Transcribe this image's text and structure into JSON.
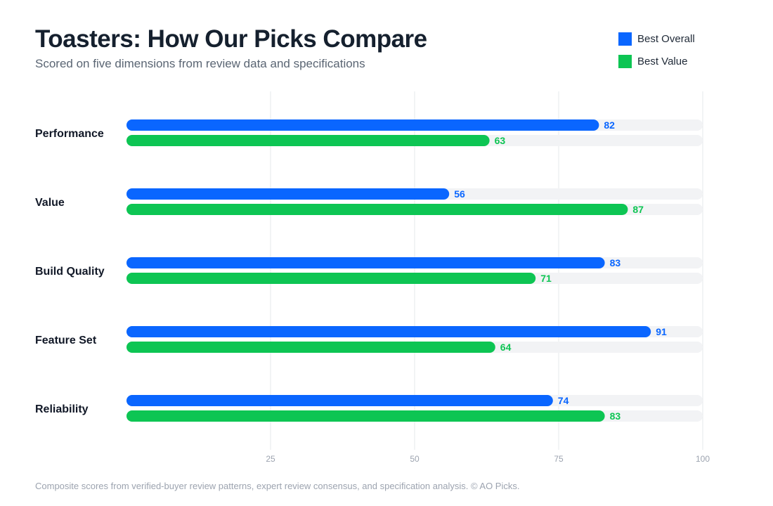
{
  "header": {
    "title": "Toasters: How Our Picks Compare",
    "subtitle": "Scored on five dimensions from review data and specifications"
  },
  "footer": {
    "note": "Composite scores from verified-buyer review patterns, expert review consensus, and specification analysis. © AO Picks."
  },
  "colors": {
    "best_overall": "#0a66ff",
    "best_value": "#0dc553",
    "track": "#f2f3f5",
    "grid": "#e6e8eb",
    "category_text": "#111827",
    "tick_text": "#9ca3af"
  },
  "chart_data": {
    "type": "bar",
    "orientation": "horizontal",
    "categories": [
      "Performance",
      "Value",
      "Build Quality",
      "Feature Set",
      "Reliability"
    ],
    "series": [
      {
        "name": "Best Overall",
        "color": "#0a66ff",
        "values": [
          82,
          56,
          83,
          91,
          74
        ]
      },
      {
        "name": "Best Value",
        "color": "#0dc553",
        "values": [
          63,
          87,
          71,
          64,
          83
        ]
      }
    ],
    "xlim": [
      0,
      100
    ],
    "xticks": [
      25,
      50,
      75,
      100
    ],
    "grid": true,
    "legend": "top-right",
    "data_labels": true
  }
}
